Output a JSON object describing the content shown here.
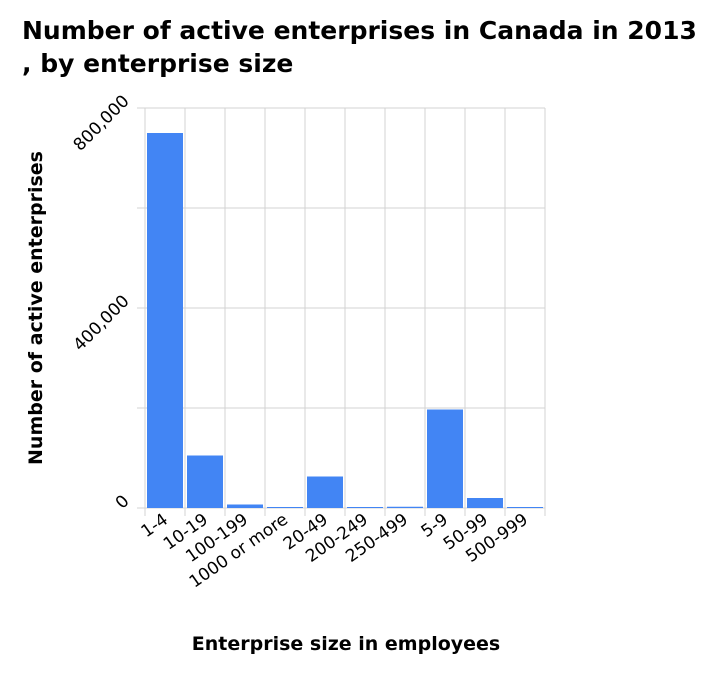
{
  "chart_data": {
    "type": "bar",
    "title": "Number of active enterprises in Canada in 2013 , by enterprise size",
    "xlabel": "Enterprise size in employees",
    "ylabel": "Number of active enterprises",
    "categories": [
      "1-4",
      "10-19",
      "100-199",
      "1000 or more",
      "20-49",
      "200-249",
      "250-499",
      "5-9",
      "50-99",
      "500-999"
    ],
    "values": [
      750000,
      105000,
      7000,
      1000,
      63000,
      1500,
      2500,
      197000,
      20000,
      1000
    ],
    "ylim": [
      0,
      800000
    ],
    "yticks": [
      0,
      400000,
      800000
    ],
    "ytick_labels": [
      "0",
      "400,000",
      "800,000"
    ],
    "grid": true,
    "bar_color": "#4285f4",
    "grid_color": "#d3d3d3"
  }
}
